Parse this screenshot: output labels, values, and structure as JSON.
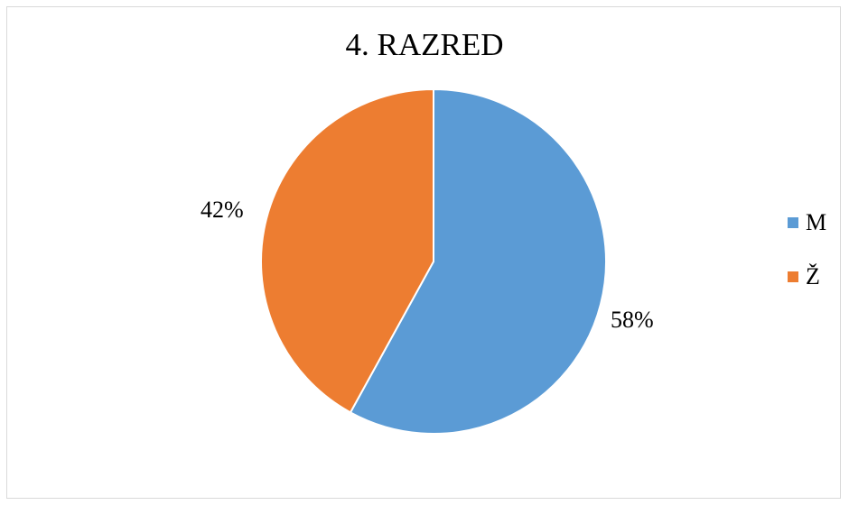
{
  "chart_data": {
    "type": "pie",
    "title": "4. RAZRED",
    "categories": [
      "M",
      "Ž"
    ],
    "values": [
      58,
      42
    ],
    "data_labels": [
      "58%",
      "42%"
    ],
    "colors": [
      "#5b9bd5",
      "#ed7d31"
    ],
    "legend": "right"
  }
}
